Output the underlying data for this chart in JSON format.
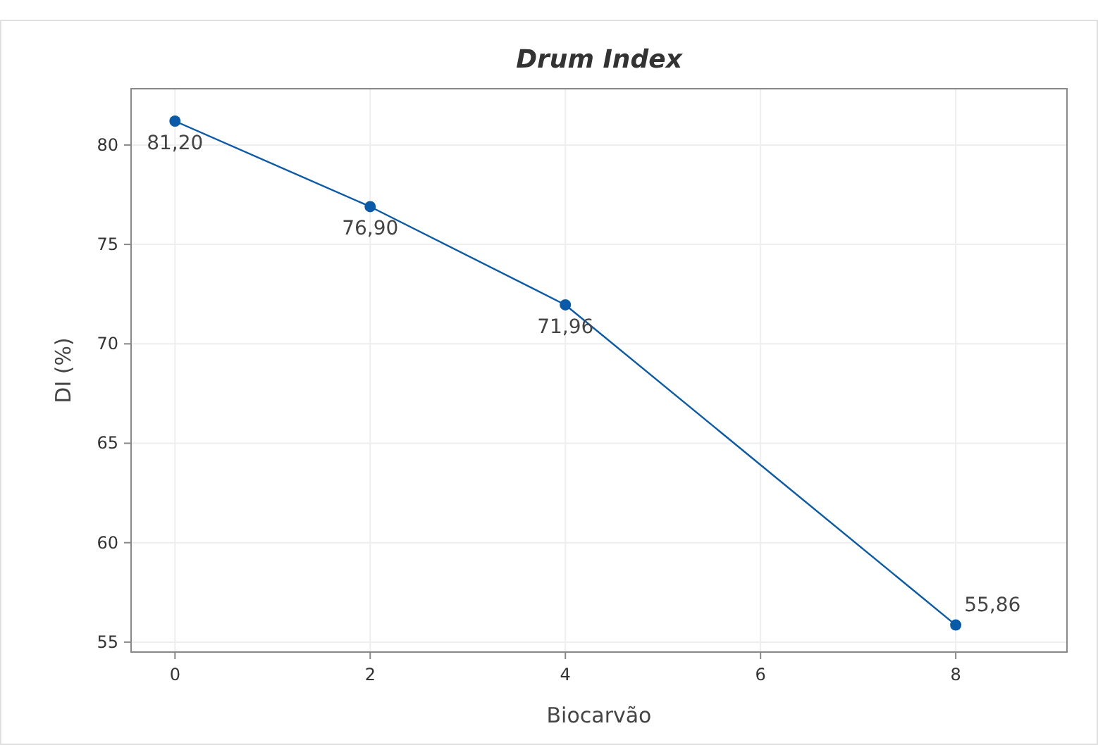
{
  "chart_data": {
    "type": "line",
    "title": "Drum Index",
    "xlabel": "Biocarvão",
    "ylabel": "DI (%)",
    "x": [
      0,
      2,
      4,
      8
    ],
    "series": [
      {
        "color": "#0a5aaa",
        "values": [
          81.2,
          76.9,
          71.96,
          55.86
        ],
        "value_labels": [
          "81,20",
          "76,90",
          "71,96",
          "55,86"
        ]
      }
    ],
    "xlim": [
      -0.45,
      9.14
    ],
    "xticks": [
      0,
      2,
      4,
      6,
      8
    ],
    "ylim": [
      54.5,
      82.83
    ],
    "yticks": [
      55,
      60,
      65,
      70,
      75,
      80
    ],
    "grid": true,
    "marker": "circle",
    "line_style": "solid"
  }
}
